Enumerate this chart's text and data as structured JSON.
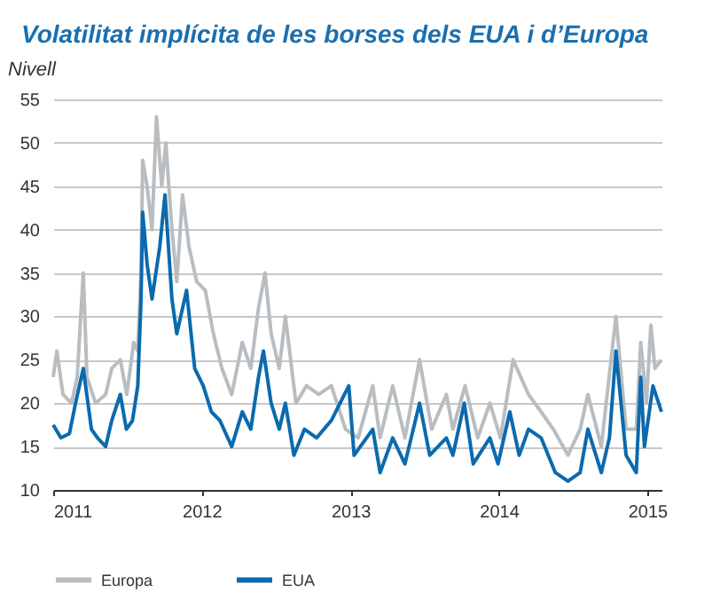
{
  "chart_data": {
    "type": "line",
    "title": "Volatilitat implícita de les borses dels EUA i d’Europa",
    "ylabel": "Nivell",
    "xlim": [
      "2011-01-01",
      "2015-02-05"
    ],
    "xticks": [
      "2011",
      "2012",
      "2013",
      "2014",
      "2015"
    ],
    "ylim": [
      10,
      55
    ],
    "yticks": [
      10,
      15,
      20,
      25,
      30,
      35,
      40,
      45,
      50,
      55
    ],
    "grid": "y",
    "legend": "bottom",
    "line_style": "solid",
    "marker": "none",
    "series": [
      {
        "name": "Europa",
        "color": "#b8bdc1",
        "x": [
          "2011-01-01",
          "2011-01-10",
          "2011-01-25",
          "2011-02-15",
          "2011-03-01",
          "2011-03-16",
          "2011-03-25",
          "2011-04-15",
          "2011-05-10",
          "2011-05-25",
          "2011-06-15",
          "2011-07-01",
          "2011-07-18",
          "2011-07-28",
          "2011-08-05",
          "2011-08-09",
          "2011-08-20",
          "2011-09-01",
          "2011-09-12",
          "2011-09-25",
          "2011-10-05",
          "2011-10-20",
          "2011-11-01",
          "2011-11-15",
          "2011-12-01",
          "2011-12-20",
          "2012-01-10",
          "2012-01-30",
          "2012-02-20",
          "2012-03-15",
          "2012-04-10",
          "2012-05-01",
          "2012-05-20",
          "2012-06-05",
          "2012-06-20",
          "2012-07-10",
          "2012-07-25",
          "2012-08-20",
          "2012-09-15",
          "2012-10-15",
          "2012-11-15",
          "2012-12-20",
          "2013-01-20",
          "2013-02-25",
          "2013-03-15",
          "2013-04-15",
          "2013-05-15",
          "2013-06-20",
          "2013-07-20",
          "2013-08-25",
          "2013-09-10",
          "2013-10-10",
          "2013-11-10",
          "2013-12-10",
          "2014-01-05",
          "2014-02-05",
          "2014-03-15",
          "2014-04-15",
          "2014-05-15",
          "2014-06-20",
          "2014-07-20",
          "2014-08-08",
          "2014-09-10",
          "2014-10-16",
          "2014-11-10",
          "2014-12-05",
          "2014-12-16",
          "2014-12-30",
          "2015-01-10",
          "2015-01-20",
          "2015-02-05"
        ],
        "values": [
          23,
          26,
          21,
          20,
          23,
          35,
          23,
          20,
          21,
          24,
          25,
          21,
          27,
          26,
          35,
          48,
          45,
          40,
          53,
          45,
          50,
          40,
          34,
          44,
          38,
          34,
          33,
          28,
          24,
          21,
          27,
          24,
          31,
          35,
          28,
          24,
          30,
          20,
          22,
          21,
          22,
          17,
          16,
          22,
          16,
          22,
          16,
          25,
          17,
          21,
          17,
          22,
          16,
          20,
          16,
          25,
          21,
          19,
          17,
          14,
          17,
          21,
          15,
          30,
          17,
          17,
          27,
          20,
          29,
          24,
          25
        ]
      },
      {
        "name": "EUA",
        "color": "#0b6aae",
        "x": [
          "2011-01-01",
          "2011-01-20",
          "2011-02-10",
          "2011-02-25",
          "2011-03-16",
          "2011-04-05",
          "2011-04-20",
          "2011-05-10",
          "2011-05-25",
          "2011-06-15",
          "2011-06-30",
          "2011-07-15",
          "2011-07-28",
          "2011-08-05",
          "2011-08-09",
          "2011-08-20",
          "2011-09-01",
          "2011-09-20",
          "2011-10-03",
          "2011-10-20",
          "2011-11-01",
          "2011-11-25",
          "2011-12-15",
          "2012-01-05",
          "2012-01-25",
          "2012-02-15",
          "2012-03-15",
          "2012-04-10",
          "2012-05-01",
          "2012-05-20",
          "2012-06-01",
          "2012-06-20",
          "2012-07-10",
          "2012-07-25",
          "2012-08-15",
          "2012-09-10",
          "2012-10-10",
          "2012-11-15",
          "2012-12-28",
          "2013-01-10",
          "2013-02-25",
          "2013-03-15",
          "2013-04-15",
          "2013-05-15",
          "2013-06-20",
          "2013-07-15",
          "2013-08-25",
          "2013-09-10",
          "2013-10-08",
          "2013-10-30",
          "2013-12-10",
          "2013-12-30",
          "2014-01-28",
          "2014-02-20",
          "2014-03-15",
          "2014-04-15",
          "2014-05-20",
          "2014-06-20",
          "2014-07-20",
          "2014-08-08",
          "2014-09-10",
          "2014-09-30",
          "2014-10-16",
          "2014-11-10",
          "2014-12-05",
          "2014-12-16",
          "2014-12-25",
          "2015-01-15",
          "2015-02-05"
        ],
        "values": [
          17.5,
          16,
          16.5,
          20,
          24,
          17,
          16,
          15,
          18,
          21,
          17,
          18,
          22,
          32,
          42,
          36,
          32,
          38,
          44,
          32,
          28,
          33,
          24,
          22,
          19,
          18,
          15,
          19,
          17,
          23,
          26,
          20,
          17,
          20,
          14,
          17,
          16,
          18,
          22,
          14,
          17,
          12,
          16,
          13,
          20,
          14,
          16,
          14,
          20,
          13,
          16,
          13,
          19,
          14,
          17,
          16,
          12,
          11,
          12,
          17,
          12,
          16,
          26,
          14,
          12,
          23,
          15,
          22,
          19
        ]
      }
    ]
  }
}
